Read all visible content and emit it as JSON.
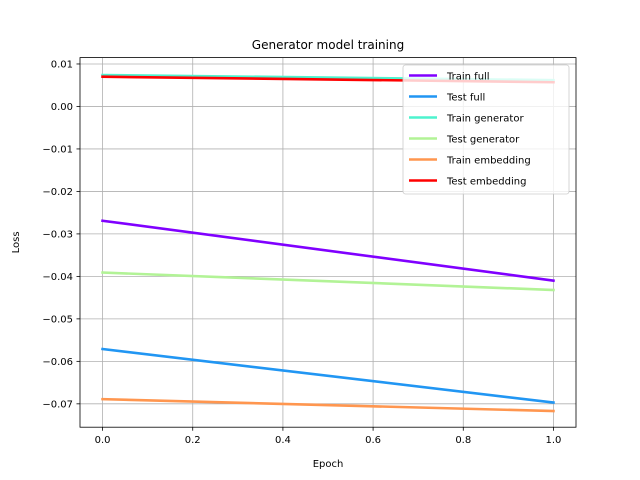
{
  "chart_data": {
    "type": "line",
    "title": "Generator model training",
    "xlabel": "Epoch",
    "ylabel": "Loss",
    "xlim": [
      -0.05,
      1.05
    ],
    "ylim": [
      -0.0755,
      0.0115
    ],
    "grid": true,
    "legend_position": "top-right",
    "x_ticks": [
      0.0,
      0.2,
      0.4,
      0.6,
      0.8,
      1.0
    ],
    "x_tick_labels": [
      "0.0",
      "0.2",
      "0.4",
      "0.6",
      "0.8",
      "1.0"
    ],
    "y_ticks": [
      0.01,
      0.0,
      -0.01,
      -0.02,
      -0.03,
      -0.04,
      -0.05,
      -0.06,
      -0.07
    ],
    "y_tick_labels": [
      "0.01",
      "0.00",
      "−0.01",
      "−0.02",
      "−0.03",
      "−0.04",
      "−0.05",
      "−0.06",
      "−0.07"
    ],
    "x": [
      0.0,
      1.0
    ],
    "series": [
      {
        "name": "Train full",
        "color": "#8000ff",
        "values": [
          -0.0269,
          -0.041
        ]
      },
      {
        "name": "Test full",
        "color": "#2196f3",
        "values": [
          -0.0571,
          -0.0697
        ]
      },
      {
        "name": "Train generator",
        "color": "#4df3ce",
        "values": [
          0.0074,
          0.0062
        ]
      },
      {
        "name": "Test generator",
        "color": "#b2f396",
        "values": [
          -0.0391,
          -0.0432
        ]
      },
      {
        "name": "Train embedding",
        "color": "#ff964f",
        "values": [
          -0.0689,
          -0.0717
        ]
      },
      {
        "name": "Test embedding",
        "color": "#ff0000",
        "values": [
          0.007,
          0.0057
        ]
      }
    ]
  }
}
